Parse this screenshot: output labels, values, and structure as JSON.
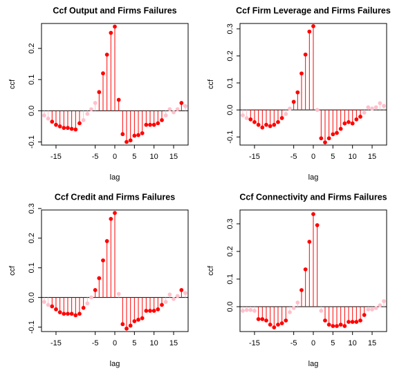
{
  "chart_data": [
    {
      "type": "stem",
      "title": "Ccf Output and Firms Failures",
      "x_label": "lag",
      "y_label": "ccf",
      "x": [
        -18,
        -17,
        -16,
        -15,
        -14,
        -13,
        -12,
        -11,
        -10,
        -9,
        -8,
        -7,
        -6,
        -5,
        -4,
        -3,
        -2,
        -1,
        0,
        1,
        2,
        3,
        4,
        5,
        6,
        7,
        8,
        9,
        10,
        11,
        12,
        13,
        14,
        15,
        16,
        17,
        18
      ],
      "values": [
        -0.015,
        -0.025,
        -0.035,
        -0.045,
        -0.05,
        -0.055,
        -0.055,
        -0.058,
        -0.06,
        -0.04,
        -0.03,
        -0.01,
        0.005,
        0.025,
        0.06,
        0.12,
        0.18,
        0.25,
        0.27,
        0.035,
        -0.075,
        -0.1,
        -0.095,
        -0.08,
        -0.078,
        -0.072,
        -0.045,
        -0.045,
        -0.045,
        -0.04,
        -0.03,
        -0.015,
        0.005,
        -0.005,
        0.005,
        0.025,
        0.015
      ],
      "colors": [
        "pink",
        "pink",
        "red",
        "red",
        "red",
        "red",
        "red",
        "red",
        "red",
        "red",
        "pink",
        "pink",
        "pink",
        "pink",
        "red",
        "red",
        "red",
        "red",
        "red",
        "red",
        "red",
        "red",
        "red",
        "red",
        "red",
        "red",
        "red",
        "red",
        "red",
        "red",
        "red",
        "pink",
        "pink",
        "pink",
        "pink",
        "red",
        "pink"
      ],
      "xlim": [
        -18.7,
        18.7
      ],
      "xticks": [
        -15,
        -5,
        0,
        5,
        10,
        15
      ],
      "ylim": [
        -0.11,
        0.28
      ],
      "yticks": [
        -0.1,
        {
          "value": 0,
          "label": "0.0"
        },
        0.1,
        0.2
      ]
    },
    {
      "type": "stem",
      "title": "Ccf Firm Leverage and Firms Failures",
      "x_label": "lag",
      "y_label": "ccf",
      "x": [
        -18,
        -17,
        -16,
        -15,
        -14,
        -13,
        -12,
        -11,
        -10,
        -9,
        -8,
        -7,
        -6,
        -5,
        -4,
        -3,
        -2,
        -1,
        0,
        1,
        2,
        3,
        4,
        5,
        6,
        7,
        8,
        9,
        10,
        11,
        12,
        13,
        14,
        15,
        16,
        17,
        18
      ],
      "values": [
        -0.02,
        -0.03,
        -0.035,
        -0.045,
        -0.055,
        -0.065,
        -0.055,
        -0.06,
        -0.055,
        -0.045,
        -0.03,
        -0.015,
        0.005,
        0.03,
        0.065,
        0.135,
        0.205,
        0.29,
        0.31,
        0.0,
        -0.105,
        -0.12,
        -0.105,
        -0.09,
        -0.085,
        -0.07,
        -0.05,
        -0.045,
        -0.05,
        -0.035,
        -0.025,
        -0.01,
        0.01,
        0.005,
        0.01,
        0.025,
        0.015
      ],
      "colors": [
        "pink",
        "pink",
        "red",
        "red",
        "red",
        "red",
        "red",
        "red",
        "red",
        "red",
        "red",
        "pink",
        "pink",
        "red",
        "red",
        "red",
        "red",
        "red",
        "red",
        "pink",
        "red",
        "red",
        "red",
        "red",
        "red",
        "red",
        "red",
        "red",
        "red",
        "red",
        "red",
        "pink",
        "pink",
        "pink",
        "pink",
        "pink",
        "pink"
      ],
      "xlim": [
        -18.7,
        18.7
      ],
      "xticks": [
        -15,
        -5,
        0,
        5,
        10,
        15
      ],
      "ylim": [
        -0.13,
        0.32
      ],
      "yticks": [
        -0.1,
        {
          "value": 0,
          "label": "0.0"
        },
        0.1,
        0.2,
        0.3
      ]
    },
    {
      "type": "stem",
      "title": "Ccf Credit and Firms Failures",
      "x_label": "lag",
      "y_label": "ccf",
      "x": [
        -18,
        -17,
        -16,
        -15,
        -14,
        -13,
        -12,
        -11,
        -10,
        -9,
        -8,
        -7,
        -6,
        -5,
        -4,
        -3,
        -2,
        -1,
        0,
        1,
        2,
        3,
        4,
        5,
        6,
        7,
        8,
        9,
        10,
        11,
        12,
        13,
        14,
        15,
        16,
        17,
        18
      ],
      "values": [
        -0.015,
        -0.025,
        -0.03,
        -0.04,
        -0.05,
        -0.055,
        -0.055,
        -0.055,
        -0.06,
        -0.055,
        -0.035,
        -0.02,
        0.0,
        0.025,
        0.065,
        0.125,
        0.19,
        0.265,
        0.285,
        0.012,
        -0.09,
        -0.105,
        -0.095,
        -0.08,
        -0.075,
        -0.07,
        -0.045,
        -0.045,
        -0.045,
        -0.04,
        -0.025,
        -0.015,
        0.01,
        -0.005,
        0.005,
        0.025,
        0.015
      ],
      "colors": [
        "pink",
        "pink",
        "red",
        "red",
        "red",
        "red",
        "red",
        "red",
        "red",
        "red",
        "red",
        "pink",
        "pink",
        "red",
        "red",
        "red",
        "red",
        "red",
        "red",
        "pink",
        "red",
        "red",
        "red",
        "red",
        "red",
        "red",
        "red",
        "red",
        "red",
        "red",
        "red",
        "pink",
        "pink",
        "pink",
        "pink",
        "red",
        "pink"
      ],
      "xlim": [
        -18.7,
        18.7
      ],
      "xticks": [
        -15,
        -5,
        0,
        5,
        10,
        15
      ],
      "ylim": [
        -0.115,
        0.295
      ],
      "yticks": [
        -0.1,
        {
          "value": 0,
          "label": "0.0"
        },
        0.1,
        0.2,
        0.3
      ]
    },
    {
      "type": "stem",
      "title": "Ccf Connectivity and Firms Failures",
      "x_label": "lag",
      "y_label": "ccf",
      "x": [
        -18,
        -17,
        -16,
        -15,
        -14,
        -13,
        -12,
        -11,
        -10,
        -9,
        -8,
        -7,
        -6,
        -5,
        -4,
        -3,
        -2,
        -1,
        0,
        1,
        2,
        3,
        4,
        5,
        6,
        7,
        8,
        9,
        10,
        11,
        12,
        13,
        14,
        15,
        16,
        17,
        18
      ],
      "values": [
        -0.015,
        -0.012,
        -0.012,
        -0.015,
        -0.045,
        -0.045,
        -0.05,
        -0.065,
        -0.075,
        -0.065,
        -0.06,
        -0.05,
        -0.02,
        -0.005,
        0.015,
        0.06,
        0.135,
        0.235,
        0.335,
        0.295,
        -0.015,
        -0.05,
        -0.065,
        -0.07,
        -0.07,
        -0.065,
        -0.07,
        -0.055,
        -0.055,
        -0.055,
        -0.05,
        -0.03,
        -0.01,
        -0.01,
        -0.005,
        0.005,
        0.02
      ],
      "colors": [
        "pink",
        "pink",
        "pink",
        "pink",
        "red",
        "red",
        "red",
        "red",
        "red",
        "red",
        "red",
        "red",
        "pink",
        "pink",
        "pink",
        "red",
        "red",
        "red",
        "red",
        "red",
        "pink",
        "red",
        "red",
        "red",
        "red",
        "red",
        "red",
        "red",
        "red",
        "red",
        "red",
        "red",
        "pink",
        "pink",
        "pink",
        "pink",
        "pink"
      ],
      "xlim": [
        -18.7,
        18.7
      ],
      "xticks": [
        -15,
        -5,
        0,
        5,
        10,
        15
      ],
      "ylim": [
        -0.09,
        0.35
      ],
      "yticks": [
        {
          "value": 0,
          "label": "0.0"
        },
        0.1,
        0.2,
        0.3
      ]
    }
  ]
}
